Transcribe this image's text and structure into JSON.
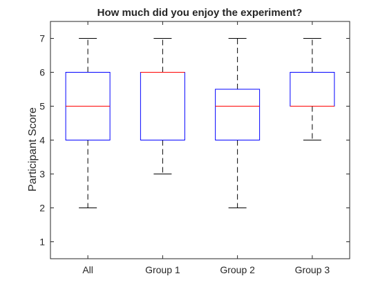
{
  "chart_data": {
    "type": "box",
    "title": "How much did you enjoy the experiment?",
    "xlabel": "",
    "ylabel": "Participant Score",
    "ylim": [
      0.5,
      7.5
    ],
    "yticks": [
      1,
      2,
      3,
      4,
      5,
      6,
      7
    ],
    "categories": [
      "All",
      "Group 1",
      "Group 2",
      "Group 3"
    ],
    "boxes": [
      {
        "category": "All",
        "whisker_low": 2,
        "q1": 4,
        "median": 5,
        "q3": 6,
        "whisker_high": 7
      },
      {
        "category": "Group 1",
        "whisker_low": 3,
        "q1": 4,
        "median": 6,
        "q3": 6,
        "whisker_high": 7
      },
      {
        "category": "Group 2",
        "whisker_low": 2,
        "q1": 4,
        "median": 5,
        "q3": 5.5,
        "whisker_high": 7
      },
      {
        "category": "Group 3",
        "whisker_low": 4,
        "q1": 5,
        "median": 5,
        "q3": 6,
        "whisker_high": 7
      }
    ],
    "colors": {
      "box": "#0000ff",
      "median": "#ff0000",
      "whisker": "#000000",
      "axis": "#262626"
    },
    "grid": false
  }
}
